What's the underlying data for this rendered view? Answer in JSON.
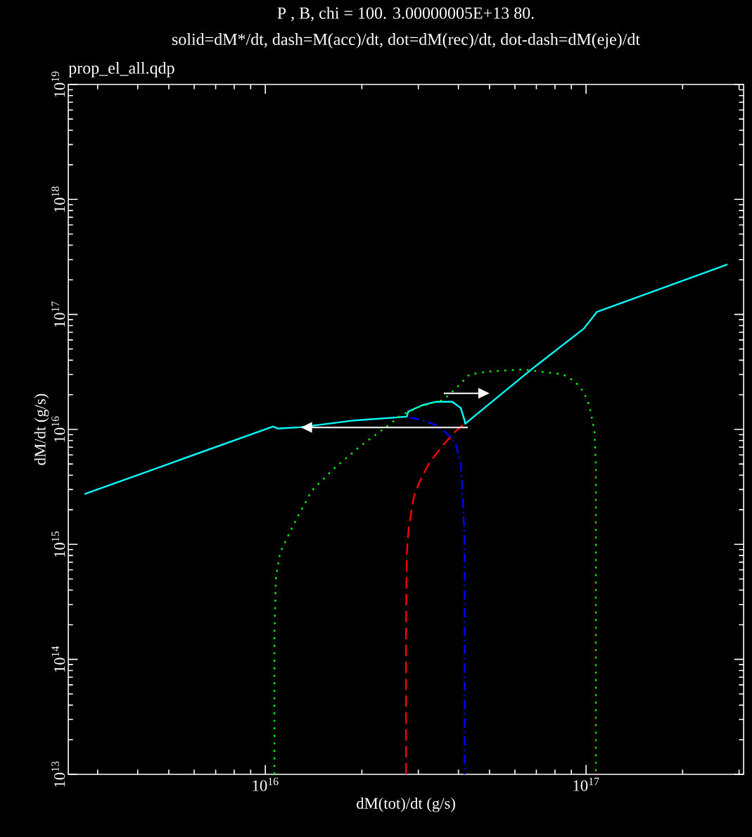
{
  "chart_data": {
    "type": "line",
    "title": "P , B, chi =    100.   3.00000005E+13   80.",
    "subtitle": "solid=dM*/dt, dash=M(acc)/dt, dot=dM(rec)/dt, dot-dash=dM(eje)/dt",
    "annotations": [
      "prop_el_all.qdp"
    ],
    "xlabel": "dM(tot)/dt (g/s)",
    "ylabel": "dM/dt (g/s)",
    "log": "xy",
    "xlim": [
      2430000000000000.0,
      3.1e+17
    ],
    "ylim": [
      10000000000000.0,
      1e+19
    ],
    "xticks": [
      {
        "value": 1e+16,
        "label": "10$^{16}$"
      },
      {
        "value": 1e+17,
        "label": "10$^{17}$"
      }
    ],
    "yticks": [
      {
        "value": 10000000000000.0,
        "label": "10$^{13}$"
      },
      {
        "value": 100000000000000.0,
        "label": "10$^{14}$"
      },
      {
        "value": 1000000000000000.0,
        "label": "10$^{15}$"
      },
      {
        "value": 1e+16,
        "label": "10$^{16}$"
      },
      {
        "value": 1e+17,
        "label": "10$^{17}$"
      },
      {
        "value": 1e+18,
        "label": "10$^{18}$"
      },
      {
        "value": 1e+19,
        "label": "10$^{19}$"
      }
    ],
    "series": [
      {
        "color": "#00ffff",
        "line_style": "solid",
        "x": [
          2730000000000000.0,
          1.057e+16,
          1.094e+16,
          1.29e+16,
          1.86e+16,
          2.76e+16,
          2.79e+16,
          3.08e+16,
          3.41e+16,
          3.83e+16,
          4.07e+16,
          4.18e+16,
          4.2e+16,
          6.75e+16,
          9.84e+16,
          1.08e+17,
          2.76e+17
        ],
        "values": [
          2740000000000000.0,
          1.06e+16,
          1.017e+16,
          1.045e+16,
          1.19e+16,
          1.29e+16,
          1.43e+16,
          1.62e+16,
          1.74e+16,
          1.74e+16,
          1.53e+16,
          1.2e+16,
          1.12e+16,
          3.32e+16,
          7.52e+16,
          1.05e+17,
          2.72e+17
        ]
      },
      {
        "color": "#ff0000",
        "line_style": "dashed",
        "x": [
          2.745e+16,
          2.745e+16,
          2.76e+16,
          2.8e+16,
          2.9e+16,
          3.01e+16,
          3.24e+16,
          3.59e+16,
          3.93e+16,
          4.18e+16
        ],
        "values": [
          10000000000000.0,
          168000000000000.0,
          826000000000000.0,
          1390000000000000.0,
          2550000000000000.0,
          3380000000000000.0,
          5090000000000000.0,
          7350000000000000.0,
          9720000000000000.0,
          1.12e+16
        ]
      },
      {
        "color": "#00ff00",
        "line_style": "dotted",
        "x": [
          1.068e+16,
          1.068e+16,
          1.079e+16,
          1.112e+16,
          1.181e+16,
          1.242e+16,
          1.396e+16,
          1.625e+16,
          1.988e+16,
          2.36e+16,
          2.65e+16,
          3.03e+16,
          3.59e+16,
          3.91e+16,
          4.33e+16,
          4.93e+16,
          6.35e+16,
          8.47e+16,
          9.23e+16,
          9.84e+16,
          1.025e+17,
          1.062e+17,
          1.073e+17,
          1.073e+17
        ],
        "values": [
          10000000000000.0,
          168000000000000.0,
          519000000000000.0,
          849000000000000.0,
          1210000000000000.0,
          1600000000000000.0,
          2940000000000000.0,
          4490000000000000.0,
          7240000000000000.0,
          1.03e+16,
          1.33e+16,
          1.57e+16,
          1.81e+16,
          2.24e+16,
          3.01e+16,
          3.18e+16,
          3.32e+16,
          3.01e+16,
          2.61e+16,
          2.11e+16,
          1.6e+16,
          9720000000000000.0,
          4940000000000000.0,
          10000000000000.0
        ]
      },
      {
        "color": "#0000ff",
        "line_style": "dashdot",
        "x": [
          2.83e+16,
          3.08e+16,
          3.46e+16,
          3.83e+16,
          3.93e+16,
          4.07e+16,
          4.13e+16,
          4.18e+16,
          4.18e+16
        ],
        "values": [
          1.27e+16,
          1.2e+16,
          1.07e+16,
          8340000000000000.0,
          7240000000000000.0,
          4940000000000000.0,
          2440000000000000.0,
          1090000000000000.0,
          10000000000000.0
        ]
      }
    ]
  }
}
